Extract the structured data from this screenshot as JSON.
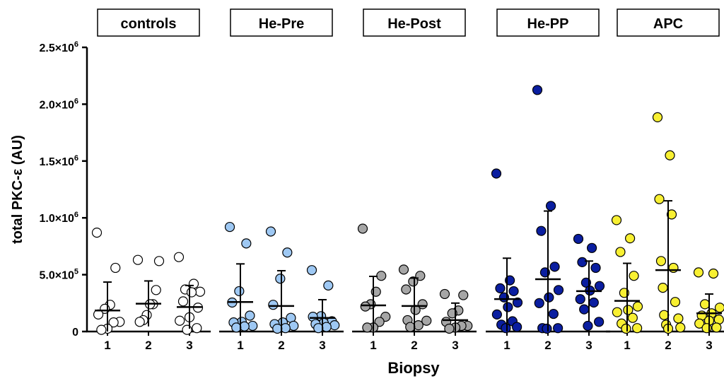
{
  "chart_data": {
    "type": "scatter",
    "subtype": "strip-plot-with-mean-and-sd",
    "ylabel": "total PKC-ε (AU)",
    "xlabel": "Biopsy",
    "ylim": [
      0,
      2500000
    ],
    "y_ticks": [
      {
        "value": 0,
        "label": "0",
        "sup": ""
      },
      {
        "value": 500000,
        "label": "5.0×10",
        "sup": "5"
      },
      {
        "value": 1000000,
        "label": "1.0×10",
        "sup": "6"
      },
      {
        "value": 1500000,
        "label": "1.5×10",
        "sup": "6"
      },
      {
        "value": 2000000,
        "label": "2.0×10",
        "sup": "6"
      },
      {
        "value": 2500000,
        "label": "2.5×10",
        "sup": "6"
      }
    ],
    "categories": [
      "1",
      "2",
      "3"
    ],
    "grid": false,
    "legend": "none",
    "groups": [
      {
        "name": "controls",
        "color": "#ffffff",
        "biopsies": [
          {
            "label": "1",
            "mean": 185000,
            "sd": 250000,
            "values": [
              870000,
              560000,
              235000,
              200000,
              150000,
              85000,
              80000,
              25000,
              15000
            ]
          },
          {
            "label": "2",
            "mean": 245000,
            "sd": 200000,
            "values": [
              630000,
              620000,
              365000,
              240000,
              240000,
              145000,
              100000,
              85000
            ]
          },
          {
            "label": "3",
            "mean": 215000,
            "sd": 190000,
            "values": [
              655000,
              420000,
              370000,
              350000,
              345000,
              265000,
              210000,
              125000,
              95000,
              30000,
              15000
            ]
          }
        ]
      },
      {
        "name": "He-Pre",
        "color": "#9ec8f3",
        "biopsies": [
          {
            "label": "1",
            "mean": 260000,
            "sd": 335000,
            "values": [
              920000,
              775000,
              355000,
              255000,
              140000,
              85000,
              80000,
              50000,
              45000,
              35000
            ]
          },
          {
            "label": "2",
            "mean": 225000,
            "sd": 310000,
            "values": [
              880000,
              695000,
              465000,
              235000,
              120000,
              80000,
              65000,
              50000,
              30000,
              25000
            ]
          },
          {
            "label": "3",
            "mean": 120000,
            "sd": 160000,
            "values": [
              540000,
              405000,
              135000,
              130000,
              90000,
              75000,
              65000,
              55000,
              40000,
              30000
            ]
          }
        ]
      },
      {
        "name": "He-Post",
        "color": "#a6a6a6",
        "biopsies": [
          {
            "label": "1",
            "mean": 230000,
            "sd": 255000,
            "values": [
              905000,
              490000,
              350000,
              240000,
              220000,
              130000,
              85000,
              35000,
              35000
            ]
          },
          {
            "label": "2",
            "mean": 225000,
            "sd": 245000,
            "values": [
              545000,
              490000,
              440000,
              370000,
              240000,
              190000,
              100000,
              95000,
              55000,
              40000
            ]
          },
          {
            "label": "3",
            "mean": 100000,
            "sd": 150000,
            "values": [
              330000,
              320000,
              185000,
              160000,
              85000,
              50000,
              50000,
              35000,
              25000
            ]
          }
        ]
      },
      {
        "name": "He-PP",
        "color": "#0a1ea0",
        "biopsies": [
          {
            "label": "1",
            "mean": 285000,
            "sd": 360000,
            "values": [
              1390000,
              450000,
              380000,
              355000,
              300000,
              255000,
              215000,
              150000,
              90000,
              60000,
              40000,
              30000
            ]
          },
          {
            "label": "2",
            "mean": 460000,
            "sd": 600000,
            "values": [
              2125000,
              1105000,
              885000,
              570000,
              520000,
              365000,
              300000,
              250000,
              155000,
              30000,
              30000,
              25000
            ]
          },
          {
            "label": "3",
            "mean": 355000,
            "sd": 265000,
            "values": [
              815000,
              735000,
              610000,
              560000,
              430000,
              400000,
              360000,
              285000,
              255000,
              195000,
              85000,
              50000
            ]
          }
        ]
      },
      {
        "name": "APC",
        "color": "#f8f032",
        "biopsies": [
          {
            "label": "1",
            "mean": 270000,
            "sd": 330000,
            "values": [
              980000,
              820000,
              700000,
              490000,
              340000,
              220000,
              190000,
              170000,
              120000,
              70000,
              30000,
              25000
            ]
          },
          {
            "label": "2",
            "mean": 540000,
            "sd": 610000,
            "values": [
              1885000,
              1550000,
              1165000,
              1030000,
              620000,
              560000,
              385000,
              260000,
              145000,
              115000,
              60000,
              35000,
              25000
            ]
          },
          {
            "label": "3",
            "mean": 160000,
            "sd": 170000,
            "values": [
              520000,
              510000,
              240000,
              210000,
              160000,
              140000,
              105000,
              95000,
              70000,
              35000,
              30000
            ]
          }
        ]
      }
    ]
  }
}
